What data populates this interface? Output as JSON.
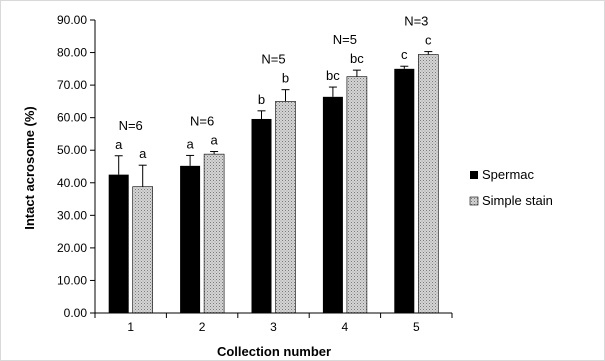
{
  "chart_data": {
    "type": "bar",
    "title": "",
    "xlabel": "Collection number",
    "ylabel": "Intact acrosome (%)",
    "ylim": [
      0,
      90
    ],
    "ytick_step": 10,
    "ytick_decimals": 2,
    "grid": false,
    "legend_position": "right",
    "categories": [
      "1",
      "2",
      "3",
      "4",
      "5"
    ],
    "series": [
      {
        "name": "Spermac",
        "color": "#000000",
        "fill": "solid",
        "values": [
          42.5,
          45.2,
          59.6,
          66.4,
          75.0
        ],
        "errors": [
          5.8,
          3.2,
          2.5,
          3.0,
          0.8
        ],
        "labels": [
          "a",
          "a",
          "b",
          "bc",
          "c"
        ]
      },
      {
        "name": "Simple stain",
        "color": "#c0c0c0",
        "fill": "dotted",
        "values": [
          38.8,
          48.8,
          65.0,
          72.6,
          79.4
        ],
        "errors": [
          6.6,
          0.8,
          3.6,
          2.0,
          0.9
        ],
        "labels": [
          "a",
          "a",
          "b",
          "bc",
          "c"
        ]
      }
    ],
    "group_annotations": [
      "N=6",
      "N=6",
      "N=5",
      "N=5",
      "N=3"
    ]
  }
}
